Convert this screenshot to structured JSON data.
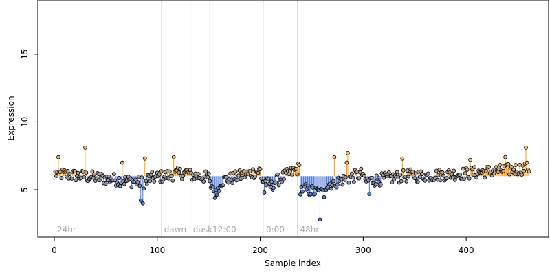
{
  "chart_data": {
    "type": "scatter",
    "title": "",
    "xlabel": "Sample index",
    "ylabel": "Expression",
    "xlim": [
      -16,
      480
    ],
    "ylim": [
      1.5,
      19.0
    ],
    "x_ticks": [
      0,
      100,
      200,
      300,
      400
    ],
    "y_ticks": [
      5,
      10,
      15
    ],
    "grid": false,
    "legend": "none",
    "baseline": 6.0,
    "colors": {
      "above_baseline": "#ff9900",
      "below_baseline": "#4d79d6",
      "marker_edge": "#000000",
      "marker_fill_min": "#4d79d6",
      "marker_fill_max": "#ffc266",
      "phase_line": "#dddddd",
      "phase_text": "#aaaaaa"
    },
    "phase_markers": [
      {
        "label": "24hr",
        "x": 0
      },
      {
        "label": "dawn",
        "x": 104
      },
      {
        "label": "dusk",
        "x": 132
      },
      {
        "label": "12:00",
        "x": 151
      },
      {
        "label": "0:00",
        "x": 203
      },
      {
        "label": "48hr",
        "x": 236
      }
    ],
    "outliers": [
      {
        "x": 4,
        "y": 7.4
      },
      {
        "x": 30,
        "y": 8.1
      },
      {
        "x": 66,
        "y": 7.0
      },
      {
        "x": 84,
        "y": 4.2
      },
      {
        "x": 86,
        "y": 4.0
      },
      {
        "x": 88,
        "y": 7.3
      },
      {
        "x": 116,
        "y": 7.4
      },
      {
        "x": 156,
        "y": 4.4
      },
      {
        "x": 204,
        "y": 4.8
      },
      {
        "x": 258,
        "y": 2.8
      },
      {
        "x": 272,
        "y": 7.4
      },
      {
        "x": 284,
        "y": 7.0
      },
      {
        "x": 285,
        "y": 7.7
      },
      {
        "x": 306,
        "y": 4.7
      },
      {
        "x": 338,
        "y": 7.3
      },
      {
        "x": 404,
        "y": 7.2
      },
      {
        "x": 438,
        "y": 7.4
      },
      {
        "x": 458,
        "y": 8.1
      }
    ],
    "segments": [
      {
        "x0": 1,
        "x1": 40,
        "y0": 6.2,
        "y1": 5.9
      },
      {
        "x0": 40,
        "x1": 90,
        "y0": 5.9,
        "y1": 5.5
      },
      {
        "x0": 90,
        "x1": 130,
        "y0": 5.8,
        "y1": 6.3
      },
      {
        "x0": 130,
        "x1": 150,
        "y0": 6.1,
        "y1": 5.9
      },
      {
        "x0": 150,
        "x1": 160,
        "y0": 5.4,
        "y1": 5.0
      },
      {
        "x0": 160,
        "x1": 200,
        "y0": 5.6,
        "y1": 6.4
      },
      {
        "x0": 200,
        "x1": 212,
        "y0": 5.8,
        "y1": 5.2
      },
      {
        "x0": 212,
        "x1": 238,
        "y0": 5.5,
        "y1": 6.6
      },
      {
        "x0": 238,
        "x1": 262,
        "y0": 5.1,
        "y1": 4.7
      },
      {
        "x0": 262,
        "x1": 300,
        "y0": 5.3,
        "y1": 6.2
      },
      {
        "x0": 300,
        "x1": 350,
        "y0": 5.6,
        "y1": 6.1
      },
      {
        "x0": 350,
        "x1": 400,
        "y0": 6.0,
        "y1": 6.2
      },
      {
        "x0": 400,
        "x1": 461,
        "y0": 6.2,
        "y1": 6.6
      }
    ],
    "n_points": 461
  }
}
